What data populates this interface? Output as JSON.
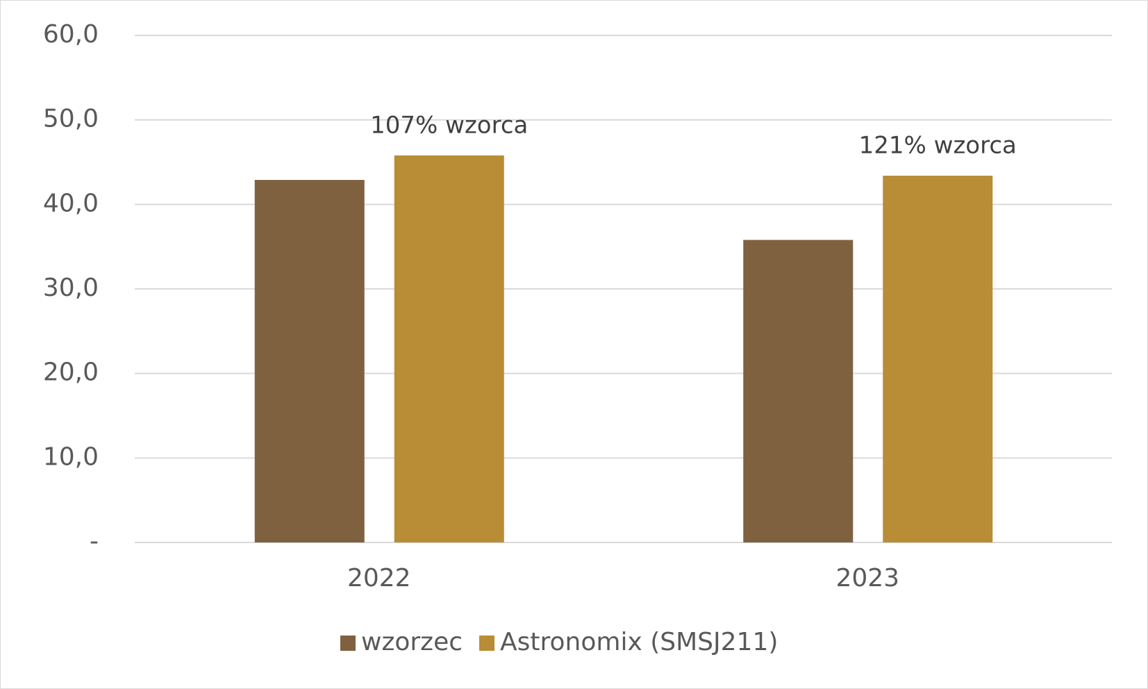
{
  "chart_data": {
    "type": "bar",
    "categories": [
      "2022",
      "2023"
    ],
    "series": [
      {
        "name": "wzorzec",
        "color": "#7f6140",
        "values": [
          42.9,
          35.8
        ]
      },
      {
        "name": "Astronomix (SMSJ211)",
        "color": "#b98c36",
        "values": [
          45.8,
          43.4
        ]
      }
    ],
    "annotations": [
      "107% wzorca",
      "121% wzorca"
    ],
    "ylim": [
      0,
      60
    ],
    "yticks": [
      {
        "value": 0,
        "label": "-"
      },
      {
        "value": 10,
        "label": "10,0"
      },
      {
        "value": 20,
        "label": "20,0"
      },
      {
        "value": 30,
        "label": "30,0"
      },
      {
        "value": 40,
        "label": "40,0"
      },
      {
        "value": 50,
        "label": "50,0"
      },
      {
        "value": 60,
        "label": "60,0"
      }
    ],
    "grid": true,
    "legend": "bottom"
  }
}
